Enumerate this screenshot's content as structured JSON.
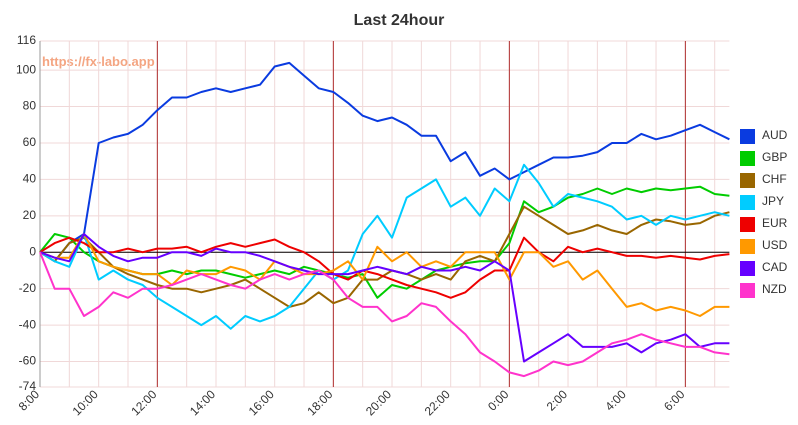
{
  "chart_data": {
    "type": "line",
    "title": "Last 24hour",
    "watermark": "https://fx-labo.app",
    "categories": [
      "8:00",
      null,
      null,
      null,
      "10:00",
      null,
      null,
      null,
      "12:00",
      null,
      null,
      null,
      "14:00",
      null,
      null,
      null,
      "16:00",
      null,
      null,
      null,
      "18:00",
      null,
      null,
      null,
      "20:00",
      null,
      null,
      null,
      "22:00",
      null,
      null,
      null,
      "0:00",
      null,
      null,
      null,
      "2:00",
      null,
      null,
      null,
      "4:00",
      null,
      null,
      null,
      "6:00",
      null,
      null,
      null
    ],
    "ylim": [
      -74,
      116
    ],
    "yticks": [
      -74,
      -60,
      -40,
      -20,
      0,
      20,
      40,
      60,
      80,
      100,
      116
    ],
    "grid": true,
    "legend": "right",
    "series": [
      {
        "name": "AUD",
        "color": "#0a3be0",
        "values": [
          0,
          -5,
          5,
          10,
          60,
          63,
          65,
          70,
          78,
          85,
          85,
          88,
          90,
          88,
          90,
          92,
          102,
          104,
          97,
          90,
          88,
          82,
          75,
          72,
          74,
          70,
          64,
          64,
          50,
          55,
          42,
          46,
          40,
          44,
          48,
          52,
          52,
          53,
          55,
          60,
          60,
          65,
          62,
          64,
          67,
          70,
          66,
          62
        ]
      },
      {
        "name": "GBP",
        "color": "#00cc00",
        "values": [
          0,
          10,
          8,
          0,
          -5,
          -8,
          -10,
          -12,
          -12,
          -10,
          -12,
          -10,
          -10,
          -12,
          -14,
          -12,
          -10,
          -12,
          -8,
          -10,
          -12,
          -14,
          -12,
          -25,
          -18,
          -20,
          -15,
          -10,
          -8,
          -6,
          -5,
          -5,
          5,
          28,
          22,
          25,
          30,
          32,
          35,
          32,
          35,
          33,
          35,
          34,
          35,
          36,
          32,
          31
        ]
      },
      {
        "name": "CHF",
        "color": "#996600",
        "values": [
          0,
          -5,
          5,
          8,
          0,
          -8,
          -12,
          -15,
          -18,
          -20,
          -20,
          -22,
          -20,
          -18,
          -15,
          -20,
          -25,
          -30,
          -28,
          -22,
          -28,
          -25,
          -15,
          -15,
          -10,
          -12,
          -15,
          -12,
          -15,
          -5,
          -2,
          -5,
          10,
          25,
          20,
          15,
          10,
          12,
          15,
          12,
          10,
          15,
          18,
          17,
          15,
          16,
          20,
          22
        ]
      },
      {
        "name": "JPY",
        "color": "#00ccff",
        "values": [
          0,
          -5,
          -8,
          10,
          -15,
          -10,
          -15,
          -18,
          -25,
          -30,
          -35,
          -40,
          -35,
          -42,
          -35,
          -38,
          -35,
          -30,
          -20,
          -10,
          -15,
          -10,
          10,
          20,
          8,
          30,
          35,
          40,
          25,
          30,
          20,
          35,
          28,
          48,
          38,
          25,
          32,
          30,
          28,
          25,
          18,
          20,
          15,
          20,
          18,
          20,
          22,
          20
        ]
      },
      {
        "name": "EUR",
        "color": "#ee0000",
        "values": [
          0,
          5,
          8,
          5,
          0,
          0,
          2,
          0,
          2,
          2,
          3,
          0,
          3,
          5,
          3,
          5,
          7,
          3,
          0,
          -5,
          -12,
          -15,
          -10,
          -12,
          -15,
          -18,
          -20,
          -22,
          -25,
          -22,
          -15,
          -10,
          -10,
          8,
          0,
          -5,
          3,
          0,
          2,
          0,
          -2,
          -2,
          -3,
          -2,
          -3,
          -4,
          -2,
          -1
        ]
      },
      {
        "name": "USD",
        "color": "#ff9900",
        "values": [
          0,
          -3,
          -3,
          10,
          -5,
          -8,
          -10,
          -12,
          -12,
          -18,
          -10,
          -12,
          -12,
          -8,
          -10,
          -15,
          -5,
          -8,
          -12,
          -12,
          -10,
          -5,
          -15,
          3,
          -5,
          0,
          -8,
          -5,
          -8,
          0,
          0,
          0,
          -15,
          0,
          0,
          -8,
          -5,
          -15,
          -10,
          -20,
          -30,
          -28,
          -32,
          -30,
          -32,
          -35,
          -30,
          -30
        ]
      },
      {
        "name": "CAD",
        "color": "#6600ff",
        "values": [
          0,
          -3,
          -5,
          10,
          3,
          -2,
          -5,
          -3,
          -3,
          0,
          0,
          -2,
          2,
          0,
          0,
          -2,
          -5,
          -8,
          -10,
          -12,
          -12,
          -12,
          -10,
          -8,
          -10,
          -12,
          -8,
          -10,
          -10,
          -8,
          -10,
          -5,
          -10,
          -60,
          -55,
          -50,
          -45,
          -52,
          -52,
          -52,
          -50,
          -55,
          -50,
          -48,
          -45,
          -52,
          -50,
          -50
        ]
      },
      {
        "name": "NZD",
        "color": "#ff33cc",
        "values": [
          0,
          -20,
          -20,
          -35,
          -30,
          -22,
          -25,
          -20,
          -20,
          -18,
          -15,
          -12,
          -15,
          -18,
          -20,
          -15,
          -12,
          -15,
          -12,
          -10,
          -15,
          -25,
          -30,
          -30,
          -38,
          -35,
          -28,
          -30,
          -38,
          -45,
          -55,
          -60,
          -66,
          -68,
          -65,
          -60,
          -62,
          -60,
          -55,
          -50,
          -48,
          -45,
          -48,
          -50,
          -52,
          -52,
          -55,
          -56
        ]
      }
    ]
  }
}
